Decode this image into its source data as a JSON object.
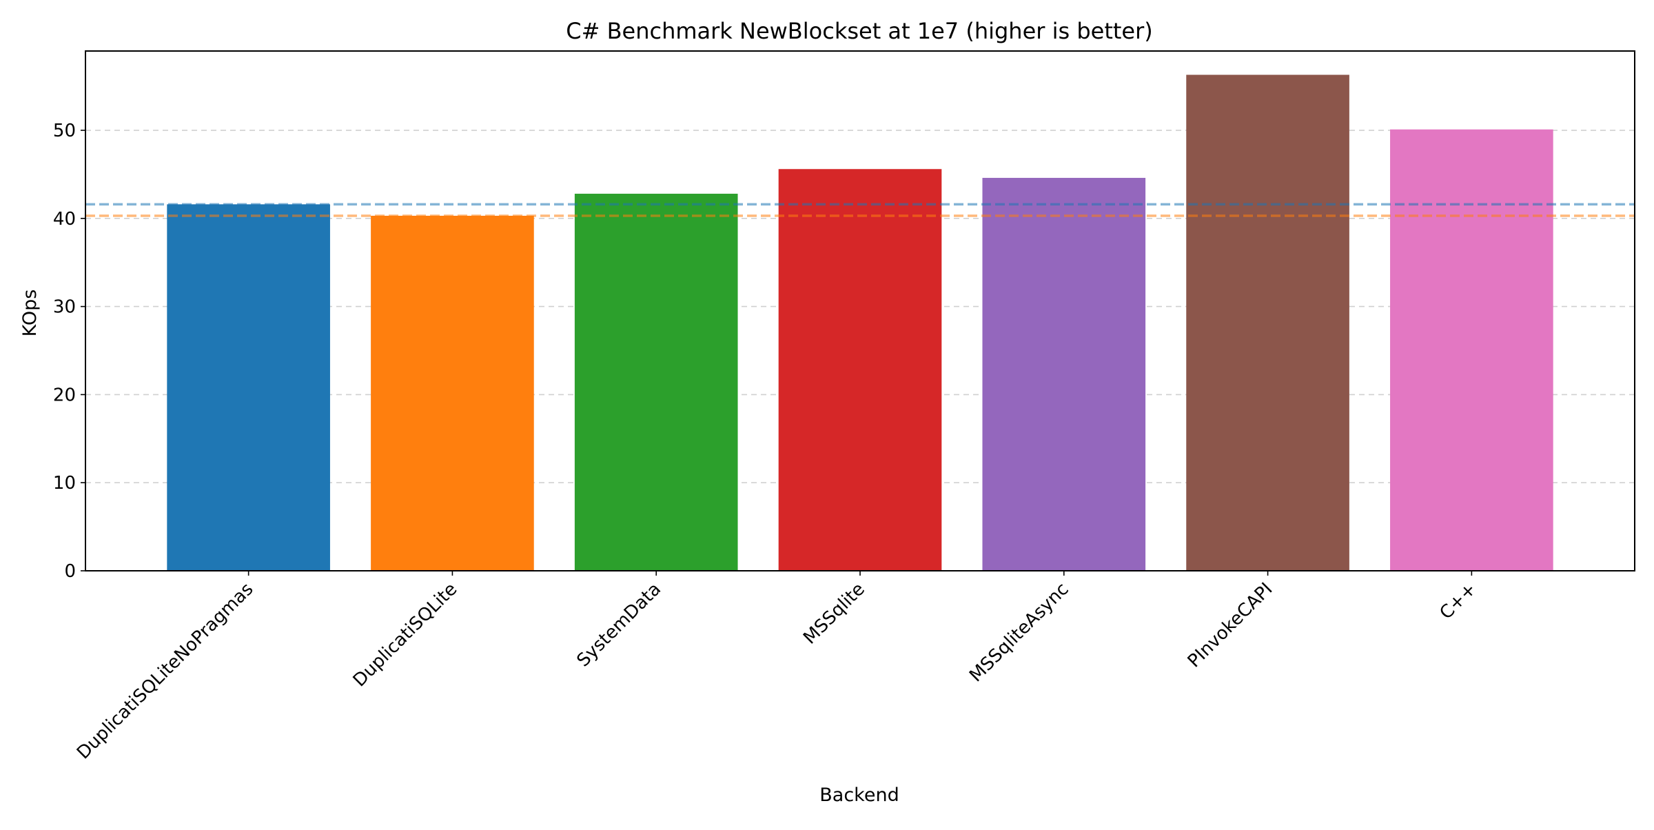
{
  "chart_data": {
    "type": "bar",
    "title": "C# Benchmark NewBlockset at 1e7 (higher is better)",
    "xlabel": "Backend",
    "ylabel": "KOps",
    "categories": [
      "DuplicatiSQLiteNoPragmas",
      "DuplicatiSQLite",
      "SystemData",
      "MSSqlite",
      "MSSqliteAsync",
      "PInvokeCAPI",
      "C++"
    ],
    "values": [
      41.6,
      40.3,
      42.8,
      45.6,
      44.6,
      56.3,
      50.1
    ],
    "colors": [
      "#1f77b4",
      "#ff7f0e",
      "#2ca02c",
      "#d62728",
      "#9467bd",
      "#8c564b",
      "#e377c2"
    ],
    "reference_lines": [
      {
        "value": 41.6,
        "color": "#1f77b4",
        "style": "dashed"
      },
      {
        "value": 40.3,
        "color": "#ff7f0e",
        "style": "dashed"
      }
    ],
    "ylim": [
      0,
      59
    ],
    "yticks": [
      0,
      10,
      20,
      30,
      40,
      50
    ],
    "grid": "y-dashed",
    "legend": "none"
  }
}
